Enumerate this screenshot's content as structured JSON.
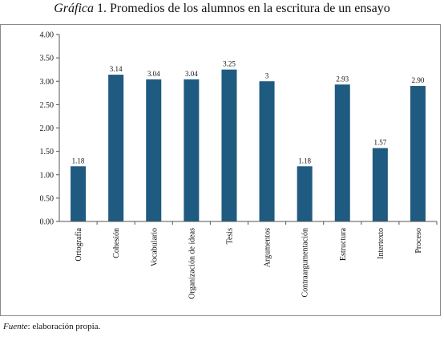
{
  "title": {
    "lead": "Gráfica",
    "text": "1. Promedios de los alumnos en la escritura de un ensayo"
  },
  "source": {
    "lead": "Fuente",
    "text": ": elaboración propia."
  },
  "chart_data": {
    "type": "bar",
    "categories": [
      "Ortografía",
      "Cohesión",
      "Vocabulario",
      "Organización de ideas",
      "Tesis",
      "Argumentos",
      "Contraargumentación",
      "Estructura",
      "Intertexto",
      "Proceso"
    ],
    "values": [
      1.18,
      3.14,
      3.04,
      3.04,
      3.25,
      3,
      1.18,
      2.93,
      1.57,
      2.9
    ],
    "value_labels": [
      "1.18",
      "3.14",
      "3.04",
      "3.04",
      "3.25",
      "3",
      "1.18",
      "2.93",
      "1.57",
      "2.90"
    ],
    "y_ticks": [
      "0.00",
      "0.50",
      "1.00",
      "1.50",
      "2.00",
      "2.50",
      "3.00",
      "3.50",
      "4.00"
    ],
    "ylim": [
      0,
      4
    ],
    "y_step": 0.5,
    "grid": false,
    "legend": "none",
    "bar_color": "#1f5a80",
    "axis_color": "#555555"
  }
}
